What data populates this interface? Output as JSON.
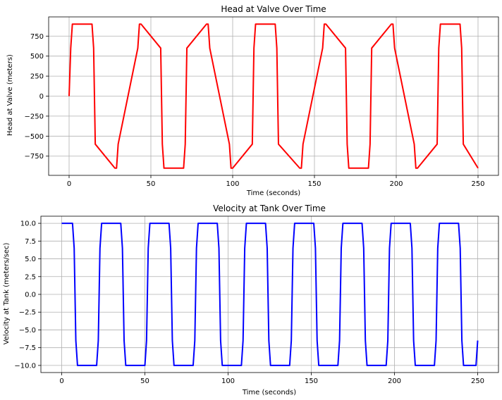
{
  "chart_data": [
    {
      "type": "line",
      "title": "Head at Valve Over Time",
      "xlabel": "Time (seconds)",
      "ylabel": "Head at Valve (meters)",
      "xlim": [
        -12.5,
        262.5
      ],
      "ylim": [
        -990,
        990
      ],
      "xticks": [
        0,
        50,
        100,
        150,
        200,
        250
      ],
      "yticks": [
        -750,
        -500,
        -250,
        0,
        250,
        500,
        750
      ],
      "ytick_labels": [
        "−750",
        "−500",
        "−250",
        "0",
        "250",
        "500",
        "750"
      ],
      "grid": true,
      "series": [
        {
          "color": "#ff0000",
          "x": [
            0,
            1,
            2,
            14,
            15,
            16,
            28,
            29,
            30,
            42,
            43,
            44,
            56,
            57,
            58,
            70,
            71,
            72,
            84,
            85,
            86,
            98,
            99,
            100,
            112,
            113,
            114,
            126,
            127,
            128,
            141,
            142,
            143,
            155,
            156,
            157,
            169,
            170,
            171,
            183,
            184,
            185,
            197,
            198,
            199,
            211,
            212,
            213,
            225,
            226,
            227,
            239,
            240,
            241,
            250
          ],
          "y": [
            0,
            600,
            900,
            900,
            600,
            -600,
            -900,
            -900,
            -600,
            600,
            900,
            900,
            600,
            -600,
            -900,
            -900,
            -600,
            600,
            900,
            900,
            600,
            -600,
            -900,
            -900,
            -600,
            600,
            900,
            900,
            600,
            -600,
            -900,
            -900,
            -600,
            600,
            900,
            900,
            600,
            -600,
            -900,
            -900,
            -600,
            600,
            900,
            900,
            600,
            -600,
            -900,
            -900,
            -600,
            600,
            900,
            900,
            600,
            -600,
            -900
          ]
        }
      ]
    },
    {
      "type": "line",
      "title": "Velocity at Tank Over Time",
      "xlabel": "Time (seconds)",
      "ylabel": "Velocity at Tank (meters/sec)",
      "xlim": [
        -12.5,
        262.5
      ],
      "ylim": [
        -11,
        11
      ],
      "xticks": [
        0,
        50,
        100,
        150,
        200,
        250
      ],
      "yticks": [
        -10.0,
        -7.5,
        -5.0,
        -2.5,
        0.0,
        2.5,
        5.0,
        7.5,
        10.0
      ],
      "ytick_labels": [
        "−10.0",
        "−7.5",
        "−5.0",
        "−2.5",
        "0.0",
        "2.5",
        "5.0",
        "7.5",
        "10.0"
      ],
      "grid": true,
      "series": [
        {
          "color": "#0000ff",
          "x": [
            0,
            6.5,
            7.5,
            8.5,
            9.5,
            21,
            22,
            23,
            24,
            35.5,
            36.5,
            37.5,
            38.5,
            50,
            51,
            52,
            53,
            64.5,
            65.5,
            66.5,
            67.5,
            79,
            80,
            81,
            82,
            93.5,
            94.5,
            95.5,
            96.5,
            108,
            109,
            110,
            111,
            122.5,
            123.5,
            124.5,
            125.5,
            137,
            138,
            139,
            140,
            151.5,
            152.5,
            153.5,
            154.5,
            166,
            167,
            168,
            169,
            180.5,
            181.5,
            182.5,
            183.5,
            195,
            196,
            197,
            198,
            209.5,
            210.5,
            211.5,
            212.5,
            224,
            225,
            226,
            227,
            238.5,
            239.5,
            240.5,
            241.5,
            249,
            250
          ],
          "y": [
            10,
            10,
            6.5,
            -6.5,
            -10,
            -10,
            -6.5,
            6.5,
            10,
            10,
            6.5,
            -6.5,
            -10,
            -10,
            -6.5,
            6.5,
            10,
            10,
            6.5,
            -6.5,
            -10,
            -10,
            -6.5,
            6.5,
            10,
            10,
            6.5,
            -6.5,
            -10,
            -10,
            -6.5,
            6.5,
            10,
            10,
            6.5,
            -6.5,
            -10,
            -10,
            -6.5,
            6.5,
            10,
            10,
            6.5,
            -6.5,
            -10,
            -10,
            -6.5,
            6.5,
            10,
            10,
            6.5,
            -6.5,
            -10,
            -10,
            -6.5,
            6.5,
            10,
            10,
            6.5,
            -6.5,
            -10,
            -10,
            -6.5,
            6.5,
            10,
            10,
            6.5,
            -6.5,
            -10,
            -10,
            -6.5
          ]
        }
      ]
    }
  ]
}
